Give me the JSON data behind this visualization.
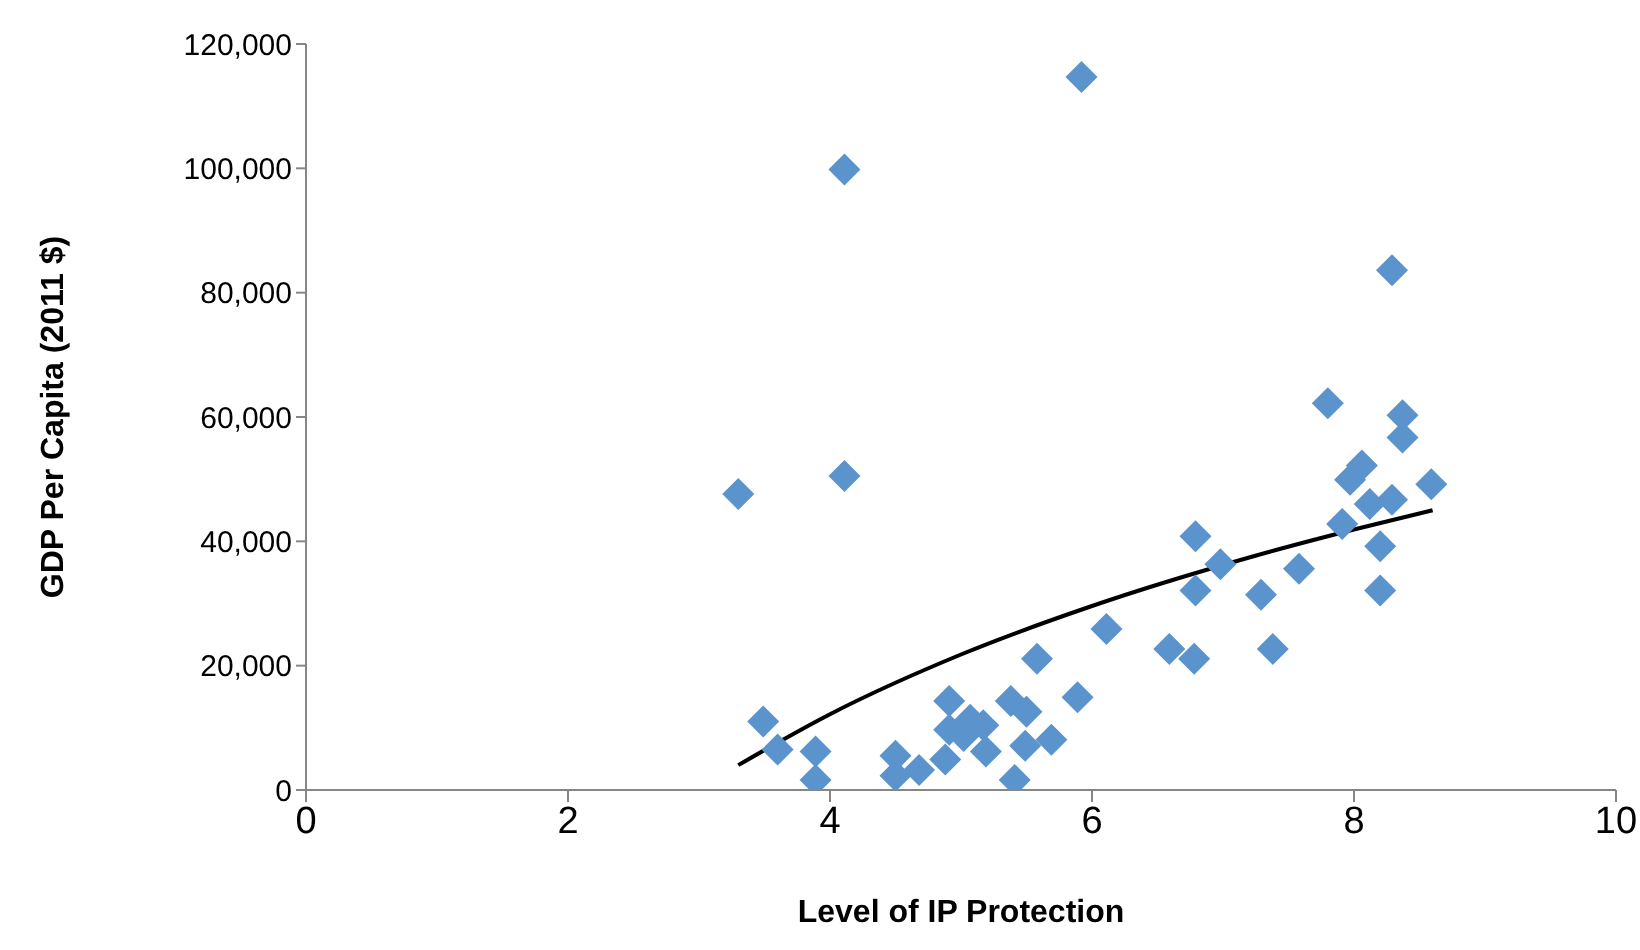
{
  "chart_data": {
    "type": "scatter",
    "xlabel": "Level of IP Protection",
    "ylabel": "GDP Per Capita (2011 $)",
    "xlim": [
      0,
      10
    ],
    "xticks": [
      0,
      2,
      4,
      6,
      8,
      10
    ],
    "ylim": [
      0,
      120000
    ],
    "yticks": [
      {
        "value": 0,
        "label": "0"
      },
      {
        "value": 20000,
        "label": "20,000"
      },
      {
        "value": 40000,
        "label": "40,000"
      },
      {
        "value": 60000,
        "label": "60,000"
      },
      {
        "value": 80000,
        "label": "80,000"
      },
      {
        "value": 100000,
        "label": "100,000"
      },
      {
        "value": 120000,
        "label": "120,000"
      }
    ],
    "grid": false,
    "marker": "diamond",
    "series": [
      {
        "color": "#5b93cc",
        "x": [
          3.3,
          4.11,
          4.11,
          5.92,
          8.29,
          7.8,
          8.37,
          8.37,
          8.06,
          7.97,
          8.59,
          8.29,
          8.12,
          7.91,
          8.2,
          8.2,
          6.79,
          6.98,
          6.79,
          7.58,
          7.29,
          6.59,
          6.78,
          7.38,
          5.58,
          6.11,
          5.89,
          3.49,
          3.6,
          3.89,
          3.89,
          4.5,
          4.5,
          4.68,
          4.88,
          4.91,
          4.91,
          5.07,
          5.19,
          5.17,
          5.38,
          5.5,
          5.49,
          5.69,
          5.41,
          5.02
        ],
        "values": [
          47600,
          50500,
          99800,
          114700,
          83600,
          62200,
          60300,
          56700,
          52200,
          49900,
          49200,
          46700,
          46000,
          42800,
          39200,
          32100,
          40800,
          36300,
          32100,
          35600,
          31400,
          22700,
          21100,
          22700,
          21100,
          25900,
          14900,
          11000,
          6500,
          6200,
          1600,
          5500,
          2300,
          3200,
          4900,
          14300,
          9700,
          11300,
          6200,
          10400,
          14300,
          12600,
          7100,
          8100,
          1600,
          8700
        ]
      },
      {
        "type": "line",
        "color": "#000000",
        "marker": "none",
        "line_style": "solid",
        "x": [
          3.3,
          4,
          5,
          6,
          7.2,
          8,
          8.6
        ],
        "values": [
          4000,
          12200,
          21800,
          29600,
          37400,
          41900,
          45000
        ]
      }
    ]
  }
}
